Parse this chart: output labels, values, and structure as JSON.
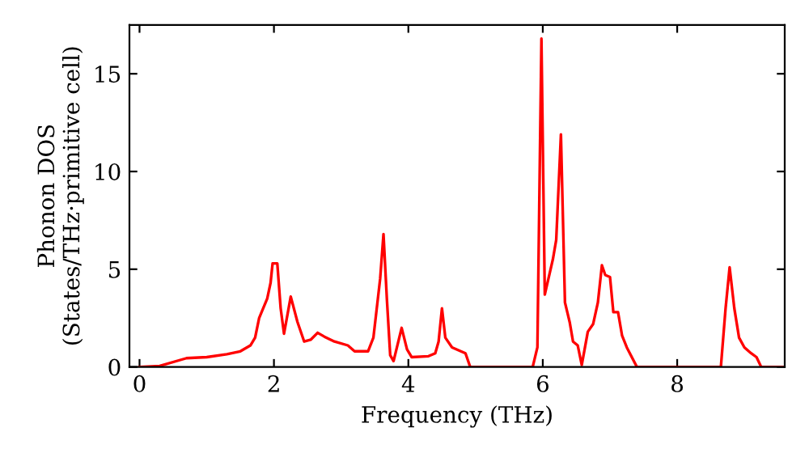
{
  "chart_data": {
    "type": "line",
    "xlabel": "Frequency (THz)",
    "ylabel": "Phonon DOS\n(States/THz·primitive cell)",
    "xlim": [
      -0.15,
      9.6
    ],
    "ylim": [
      0,
      17.5
    ],
    "xticks": [
      0,
      2,
      4,
      6,
      8
    ],
    "yticks": [
      0,
      5,
      10,
      15
    ],
    "grid": false,
    "legend": false,
    "marker": "none",
    "line_style": "solid",
    "series": [
      {
        "color": "#ff0000",
        "x": [
          0,
          0.3,
          0.7,
          1.0,
          1.3,
          1.5,
          1.65,
          1.72,
          1.78,
          1.9,
          1.95,
          1.98,
          2.05,
          2.1,
          2.15,
          2.25,
          2.35,
          2.45,
          2.55,
          2.65,
          2.75,
          2.9,
          3.1,
          3.2,
          3.4,
          3.48,
          3.58,
          3.63,
          3.68,
          3.73,
          3.78,
          3.9,
          3.98,
          4.05,
          4.3,
          4.4,
          4.45,
          4.5,
          4.55,
          4.65,
          4.85,
          4.92,
          5.85,
          5.92,
          5.98,
          6.03,
          6.15,
          6.2,
          6.27,
          6.33,
          6.4,
          6.45,
          6.52,
          6.58,
          6.67,
          6.75,
          6.82,
          6.88,
          6.93,
          7.0,
          7.05,
          7.12,
          7.18,
          7.25,
          7.4,
          8.65,
          8.72,
          8.78,
          8.85,
          8.92,
          9.0,
          9.1,
          9.18,
          9.25,
          9.6
        ],
        "values": [
          0,
          0.05,
          0.45,
          0.5,
          0.65,
          0.8,
          1.1,
          1.5,
          2.5,
          3.5,
          4.3,
          5.3,
          5.3,
          3.0,
          1.7,
          3.6,
          2.3,
          1.3,
          1.4,
          1.75,
          1.55,
          1.3,
          1.1,
          0.8,
          0.8,
          1.5,
          4.5,
          6.8,
          3.5,
          0.6,
          0.3,
          2.0,
          0.9,
          0.5,
          0.55,
          0.7,
          1.3,
          3.0,
          1.5,
          1.0,
          0.7,
          0,
          0,
          1.0,
          16.8,
          3.7,
          5.5,
          6.5,
          11.9,
          3.3,
          2.3,
          1.3,
          1.1,
          0.1,
          1.8,
          2.2,
          3.3,
          5.2,
          4.7,
          4.6,
          2.8,
          2.8,
          1.6,
          1.0,
          0,
          0,
          3.0,
          5.1,
          3.0,
          1.5,
          1.0,
          0.7,
          0.5,
          0,
          0
        ]
      }
    ]
  }
}
